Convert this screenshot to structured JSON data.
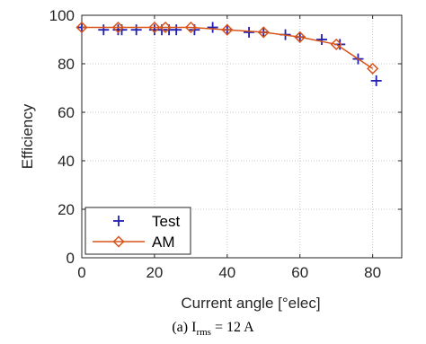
{
  "chart_data": {
    "type": "line",
    "xlabel": "Current angle [°elec]",
    "ylabel": "Efficiency",
    "xlim": [
      0,
      88
    ],
    "ylim": [
      0,
      100
    ],
    "xticks": [
      0,
      20,
      40,
      60,
      80
    ],
    "yticks": [
      0,
      20,
      40,
      60,
      80,
      100
    ],
    "grid": true,
    "legend_position": "bottom-left",
    "series": [
      {
        "name": "Test",
        "marker": "plus",
        "color": "#1f1fb0",
        "line": false,
        "x": [
          0,
          6,
          10,
          11,
          15,
          20,
          22,
          24,
          26,
          31,
          36,
          40,
          46,
          50,
          56,
          60,
          66,
          71,
          76,
          81
        ],
        "y": [
          95,
          94,
          94,
          94,
          94,
          94,
          94,
          94,
          94,
          94,
          95,
          94,
          93,
          93,
          92,
          91,
          90,
          88,
          82,
          73
        ]
      },
      {
        "name": "AM",
        "marker": "diamond",
        "color": "#d95319",
        "line": true,
        "x": [
          0,
          10,
          20,
          23,
          30,
          40,
          50,
          60,
          70,
          80
        ],
        "y": [
          95,
          95,
          95,
          95,
          95,
          94,
          93,
          91,
          88,
          78
        ]
      }
    ]
  },
  "caption": {
    "prefix": "(a) I",
    "subscript": "rms",
    "suffix": " = 12 A"
  }
}
